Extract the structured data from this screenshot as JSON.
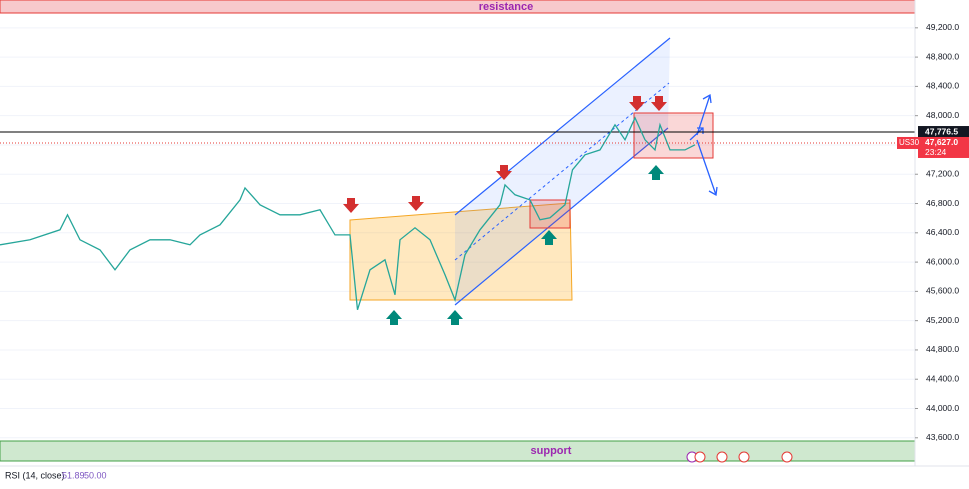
{
  "chart_data": {
    "type": "line",
    "symbol": "US30",
    "x": [
      0,
      12,
      24,
      27,
      32,
      40,
      46,
      52,
      60,
      68,
      76,
      80,
      88,
      96,
      98,
      104,
      112,
      120,
      128,
      134,
      140,
      143,
      148,
      154,
      158,
      160,
      166,
      172,
      178,
      182,
      186,
      192,
      200,
      202,
      206,
      212,
      216,
      220,
      226,
      229,
      234,
      240,
      246,
      250,
      254,
      258,
      262,
      264,
      268,
      274,
      278
    ],
    "xlim": [
      0,
      366
    ],
    "series": [
      {
        "name": "US30",
        "color": "#26a69a",
        "values": [
          46236,
          46304,
          46441,
          46646,
          46304,
          46167,
          45894,
          46167,
          46304,
          46304,
          46236,
          46372,
          46509,
          46850,
          47014,
          46782,
          46646,
          46646,
          46714,
          46372,
          46372,
          45348,
          45894,
          46031,
          45553,
          46304,
          46468,
          46304,
          45826,
          45484,
          46099,
          46441,
          46782,
          47055,
          46919,
          46850,
          46577,
          46605,
          46782,
          47260,
          47465,
          47533,
          47875,
          47670,
          47971,
          47670,
          47533,
          47875,
          47533,
          47533,
          47602
        ]
      }
    ],
    "ylim": [
      43160,
      49580
    ],
    "yticks": [
      {
        "value": 43600,
        "label": "43,600.0"
      },
      {
        "value": 44000,
        "label": "44,000.0"
      },
      {
        "value": 44400,
        "label": "44,400.0"
      },
      {
        "value": 44800,
        "label": "44,800.0"
      },
      {
        "value": 45200,
        "label": "45,200.0"
      },
      {
        "value": 45600,
        "label": "45,600.0"
      },
      {
        "value": 46000,
        "label": "46,000.0"
      },
      {
        "value": 46400,
        "label": "46,400.0"
      },
      {
        "value": 46800,
        "label": "46,800.0"
      },
      {
        "value": 47200,
        "label": "47,200.0"
      },
      {
        "value": 47600,
        "label": "47,600.0"
      },
      {
        "value": 48000,
        "label": "48,000.0"
      },
      {
        "value": 48400,
        "label": "48,400.0"
      },
      {
        "value": 48800,
        "label": "48,800.0"
      },
      {
        "value": 49200,
        "label": "49,200.0"
      }
    ],
    "price_line": {
      "value": 47776.5,
      "label": "47,776.5"
    },
    "last_price": {
      "value": 47627.0,
      "label": "47,627.0"
    },
    "countdown": "23:24",
    "resistance_label": "resistance",
    "support_label": "support",
    "indicator": {
      "name": "RSI (14, close)",
      "value": "51.89",
      "level": "50.00"
    }
  }
}
